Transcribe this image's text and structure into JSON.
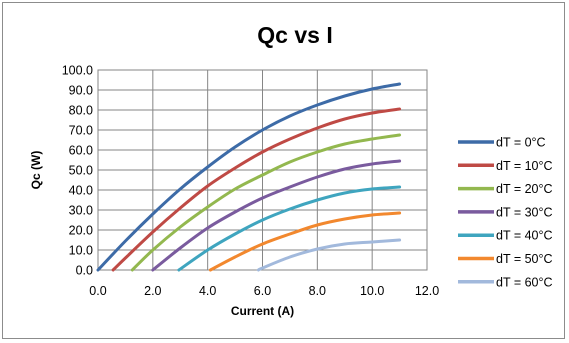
{
  "chart_data": {
    "type": "line",
    "title": "Qc vs I",
    "xlabel": "Current (A)",
    "ylabel": "Qc (W)",
    "xlim": [
      0,
      12
    ],
    "ylim": [
      0,
      100
    ],
    "xticks": [
      "0.0",
      "2.0",
      "4.0",
      "6.0",
      "8.0",
      "10.0",
      "12.0"
    ],
    "yticks": [
      "0.0",
      "10.0",
      "20.0",
      "30.0",
      "40.0",
      "50.0",
      "60.0",
      "70.0",
      "80.0",
      "90.0",
      "100.0"
    ],
    "grid": true,
    "legend_position": "right",
    "series": [
      {
        "name": "dT = 0°C",
        "color": "#3d6ba7",
        "x": [
          0.0,
          1.0,
          2.0,
          3.0,
          4.0,
          5.0,
          6.0,
          7.0,
          8.0,
          9.0,
          10.0,
          11.0
        ],
        "y": [
          0.0,
          14.5,
          28.0,
          40.5,
          51.5,
          61.5,
          70.0,
          77.0,
          82.5,
          87.0,
          90.5,
          93.0
        ]
      },
      {
        "name": "dT = 10°C",
        "color": "#bf4a45",
        "x": [
          0.55,
          1.0,
          2.0,
          3.0,
          4.0,
          5.0,
          6.0,
          7.0,
          8.0,
          9.0,
          10.0,
          11.0
        ],
        "y": [
          0.0,
          6.0,
          19.0,
          31.0,
          42.0,
          51.0,
          59.0,
          65.5,
          71.0,
          75.5,
          78.5,
          80.5
        ]
      },
      {
        "name": "dT = 20°C",
        "color": "#93b84f",
        "x": [
          1.25,
          2.0,
          3.0,
          4.0,
          5.0,
          6.0,
          7.0,
          8.0,
          9.0,
          10.0,
          11.0
        ],
        "y": [
          0.0,
          10.0,
          21.5,
          31.5,
          40.5,
          47.5,
          54.0,
          59.0,
          63.0,
          65.5,
          67.5
        ]
      },
      {
        "name": "dT = 30°C",
        "color": "#7a5b9e",
        "x": [
          2.0,
          3.0,
          4.0,
          5.0,
          6.0,
          7.0,
          8.0,
          9.0,
          10.0,
          11.0
        ],
        "y": [
          0.0,
          11.0,
          21.0,
          29.0,
          36.0,
          41.5,
          46.5,
          50.5,
          53.0,
          54.5
        ]
      },
      {
        "name": "dT = 40°C",
        "color": "#3fa5bf",
        "x": [
          2.95,
          4.0,
          5.0,
          6.0,
          7.0,
          8.0,
          9.0,
          10.0,
          11.0
        ],
        "y": [
          0.0,
          10.0,
          18.0,
          25.0,
          30.5,
          35.0,
          38.5,
          40.5,
          41.5
        ]
      },
      {
        "name": "dT = 50°C",
        "color": "#f2882e",
        "x": [
          4.1,
          5.0,
          6.0,
          7.0,
          8.0,
          9.0,
          10.0,
          11.0
        ],
        "y": [
          0.0,
          6.5,
          13.0,
          18.0,
          22.5,
          25.5,
          27.5,
          28.5
        ]
      },
      {
        "name": "dT = 60°C",
        "color": "#a2b9dc",
        "x": [
          5.85,
          6.0,
          7.0,
          8.0,
          9.0,
          10.0,
          11.0
        ],
        "y": [
          0.0,
          1.0,
          6.5,
          10.5,
          13.0,
          14.0,
          15.0
        ]
      }
    ]
  }
}
